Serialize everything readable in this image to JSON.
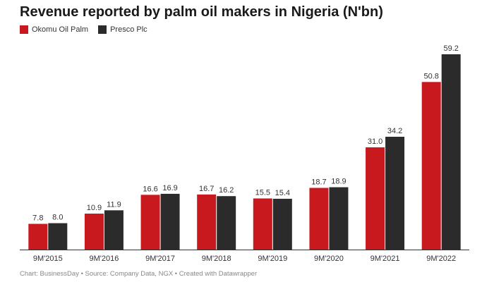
{
  "title": "Revenue reported by palm oil makers in Nigeria (N'bn)",
  "footer": "Chart: BusinessDay • Source: Company Data, NGX • Created with Datawrapper",
  "colors": {
    "okomu": "#c8191f",
    "presco": "#2b2b2b",
    "axis": "#333333",
    "label": "#333333"
  },
  "chart_data": {
    "type": "bar",
    "title": "Revenue reported by palm oil makers in Nigeria (N'bn)",
    "categories": [
      "9M'2015",
      "9M'2016",
      "9M'2017",
      "9M'2018",
      "9M'2019",
      "9M'2020",
      "9M'2021",
      "9M'2022"
    ],
    "series": [
      {
        "name": "Okomu Oil Palm",
        "color": "#c8191f",
        "values": [
          7.8,
          10.9,
          16.6,
          16.7,
          15.5,
          18.7,
          31.0,
          50.8
        ],
        "labels": [
          "7.8",
          "10.9",
          "16.6",
          "16.7",
          "15.5",
          "18.7",
          "31.0",
          "50.8"
        ]
      },
      {
        "name": "Presco Plc",
        "color": "#2b2b2b",
        "values": [
          8.0,
          11.9,
          16.9,
          16.2,
          15.4,
          18.9,
          34.2,
          59.2
        ],
        "labels": [
          "8.0",
          "11.9",
          "16.9",
          "16.2",
          "15.4",
          "18.9",
          "34.2",
          "59.2"
        ]
      }
    ],
    "ylim": [
      0,
      59.2
    ],
    "grid": false,
    "legend_position": "top-left"
  }
}
